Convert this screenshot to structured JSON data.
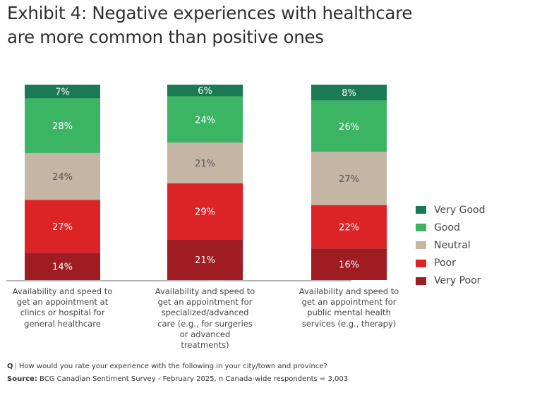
{
  "chart_data": {
    "type": "bar",
    "stacked": true,
    "orientation": "vertical",
    "title": "Exhibit 4: Negative experiences with healthcare are more common than positive ones",
    "title_lines": [
      "Exhibit 4: Negative experiences with healthcare",
      "are more common than positive ones"
    ],
    "categories": [
      "Availability and speed to get an appointment at clinics or hospital for general healthcare",
      "Availability and speed to get an appointment for specialized/advanced care (e.g., for surgeries or advanced treatments)",
      "Availability and speed to get an appointment for public mental health services (e.g., therapy)"
    ],
    "category_label_lines": [
      [
        "Availability and speed to",
        "get an appointment at",
        "clinics or hospital for",
        "general healthcare"
      ],
      [
        "Availability and speed to",
        "get an appointment for",
        "specialized/advanced",
        "care (e.g., for surgeries",
        "or advanced",
        "treatments)"
      ],
      [
        "Availability and speed to",
        "get an appointment for",
        "public mental health",
        "services (e.g., therapy)"
      ]
    ],
    "series": [
      {
        "name": "Very Poor",
        "color": "#9e1c22",
        "label_color": "#ffffff",
        "values": [
          14,
          21,
          16
        ]
      },
      {
        "name": "Poor",
        "color": "#dc2427",
        "label_color": "#ffffff",
        "values": [
          27,
          29,
          22
        ]
      },
      {
        "name": "Neutral",
        "color": "#c4b5a5",
        "label_color": "#555555",
        "values": [
          24,
          21,
          27
        ]
      },
      {
        "name": "Good",
        "color": "#3bb464",
        "label_color": "#ffffff",
        "values": [
          28,
          24,
          26
        ]
      },
      {
        "name": "Very Good",
        "color": "#1a7a56",
        "label_color": "#ffffff",
        "values": [
          7,
          6,
          8
        ]
      }
    ],
    "value_suffix": "%",
    "xlabel": "",
    "ylabel": "",
    "ylim": [
      0,
      100
    ],
    "grid": false,
    "legend": {
      "position": "right",
      "order": [
        "Very Good",
        "Good",
        "Neutral",
        "Poor",
        "Very Poor"
      ]
    }
  },
  "footer": {
    "question_mark": "Q",
    "question_sep": "|",
    "question": "How would you rate your experience with the following in your city/town and province?",
    "source_label": "Source:",
    "source": "BCG Canadian Sentiment Survey - February 2025, n Canada-wide respondents = 3,003"
  }
}
